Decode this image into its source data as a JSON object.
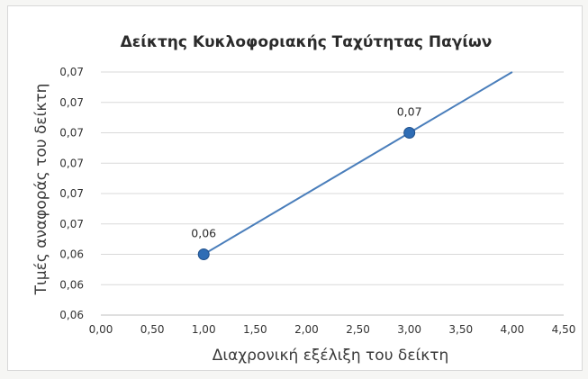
{
  "chart_data": {
    "type": "scatter",
    "title": "Δείκτης Κυκλοφοριακής Ταχύτητας Παγίων",
    "xlabel": "Διαχρονική εξέλιξη του δείκτη",
    "ylabel": "Τιμές αναφοράς του δείκτη",
    "xlim": [
      0,
      4.5
    ],
    "x_ticks": [
      "0,00",
      "0,50",
      "1,00",
      "1,50",
      "2,00",
      "2,50",
      "3,00",
      "3,50",
      "4,00",
      "4,50"
    ],
    "y_ticks": [
      "0,06",
      "0,06",
      "0,06",
      "0,07",
      "0,07",
      "0,07",
      "0,07",
      "0,07",
      "0,07"
    ],
    "grid": true,
    "series": [
      {
        "type": "line",
        "x": [
          1,
          3,
          4
        ],
        "y": [
          0.0625,
          0.0685,
          0.0715
        ],
        "markers": [
          true,
          true,
          false
        ],
        "data_labels": [
          "0,06",
          "0,07",
          ""
        ]
      }
    ],
    "colors": {
      "line": "#4a7ebb",
      "marker": "#2f6db5"
    }
  }
}
